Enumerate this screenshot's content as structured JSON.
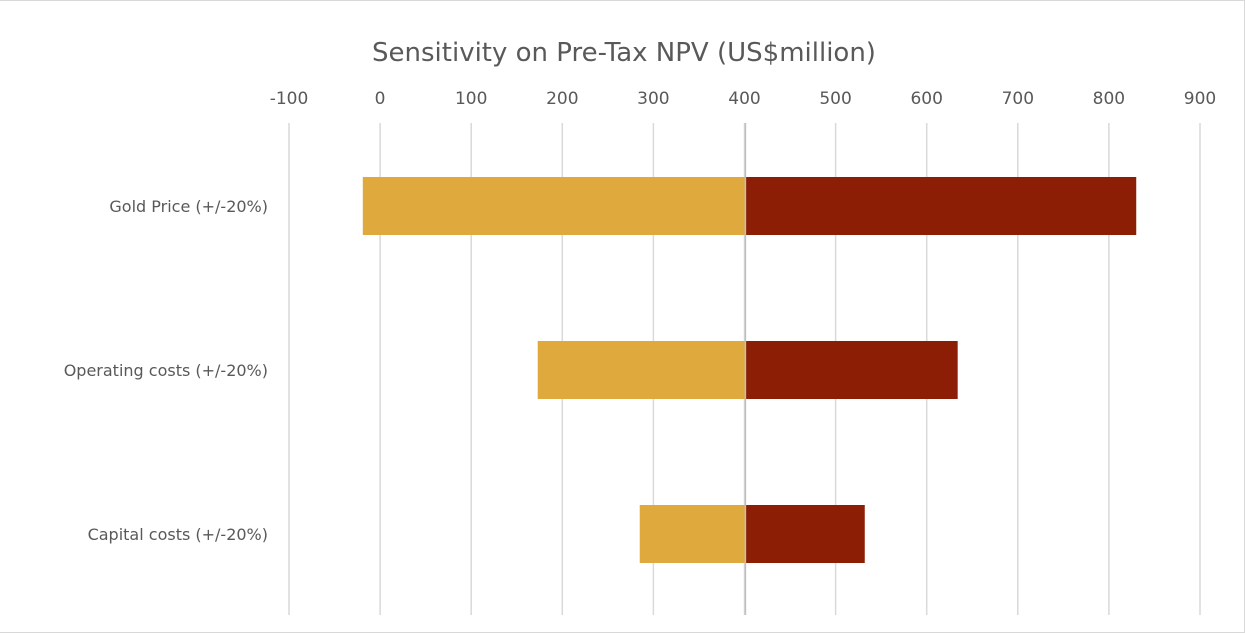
{
  "chart_data": {
    "type": "bar",
    "orientation": "horizontal",
    "variant": "tornado",
    "title": "Sensitivity on Pre-Tax NPV (US$million)",
    "xlabel": "",
    "ylabel": "",
    "axis_position": "top",
    "xlim": [
      -100,
      900
    ],
    "xticks": [
      "-100",
      "0",
      "100",
      "200",
      "300",
      "400",
      "500",
      "600",
      "700",
      "800",
      "900"
    ],
    "base_value": 401,
    "grid": true,
    "legend": "none",
    "categories": [
      "Gold Price (+/-20%)",
      "Operating costs  (+/-20%)",
      "Capital costs  (+/-20%)"
    ],
    "series": [
      {
        "color": "#E0A93E",
        "values": [
          -19,
          173,
          285
        ]
      },
      {
        "color": "#8B1E04",
        "values": [
          830,
          634,
          532
        ]
      }
    ]
  }
}
